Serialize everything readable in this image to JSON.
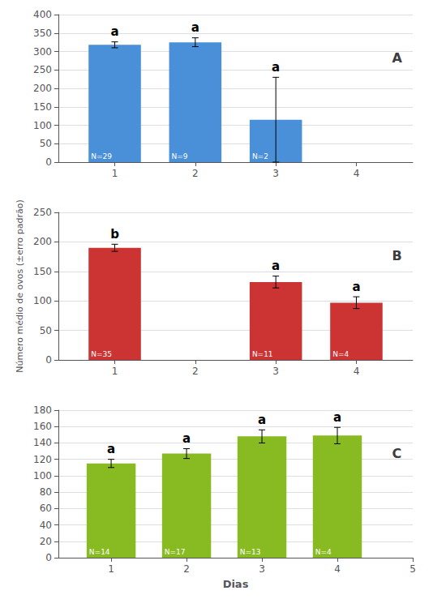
{
  "chart_data": [
    {
      "type": "bar",
      "label": "A",
      "color": "#4A90D9",
      "x": [
        1,
        2,
        3
      ],
      "values": [
        318,
        325,
        115
      ],
      "errors": [
        8,
        12,
        115
      ],
      "n_labels": [
        "N=29",
        "N=9",
        "N=2"
      ],
      "sig_labels": [
        "a",
        "a",
        "a"
      ],
      "xlim": [
        0.3,
        4.7
      ],
      "xticks": [
        1,
        2,
        3,
        4
      ],
      "ylim": [
        0,
        400
      ],
      "yticks": [
        0,
        50,
        100,
        150,
        200,
        250,
        300,
        350,
        400
      ],
      "grid": true
    },
    {
      "type": "bar",
      "label": "B",
      "color": "#CC3333",
      "x": [
        1,
        3,
        4
      ],
      "values": [
        190,
        132,
        97
      ],
      "errors": [
        6,
        10,
        10
      ],
      "n_labels": [
        "N=35",
        "N=11",
        "N=4"
      ],
      "sig_labels": [
        "b",
        "a",
        "a"
      ],
      "xlim": [
        0.3,
        4.7
      ],
      "xticks": [
        1,
        2,
        3,
        4
      ],
      "ylim": [
        0,
        250
      ],
      "yticks": [
        0,
        50,
        100,
        150,
        200,
        250
      ],
      "ylabel": "Número médio de ovos (±erro padrão)",
      "grid": true
    },
    {
      "type": "bar",
      "label": "C",
      "color": "#88BB22",
      "x": [
        1,
        2,
        3,
        4
      ],
      "values": [
        115,
        127,
        148,
        149
      ],
      "errors": [
        5,
        6,
        8,
        10
      ],
      "n_labels": [
        "N=14",
        "N=17",
        "N=13",
        "N=4"
      ],
      "sig_labels": [
        "a",
        "a",
        "a",
        "a"
      ],
      "xlim": [
        0.3,
        5.0
      ],
      "xticks": [
        1,
        2,
        3,
        4,
        5
      ],
      "ylim": [
        0,
        180
      ],
      "yticks": [
        0,
        20,
        40,
        60,
        80,
        100,
        120,
        140,
        160,
        180
      ],
      "xlabel": "Dias",
      "grid": true
    }
  ]
}
